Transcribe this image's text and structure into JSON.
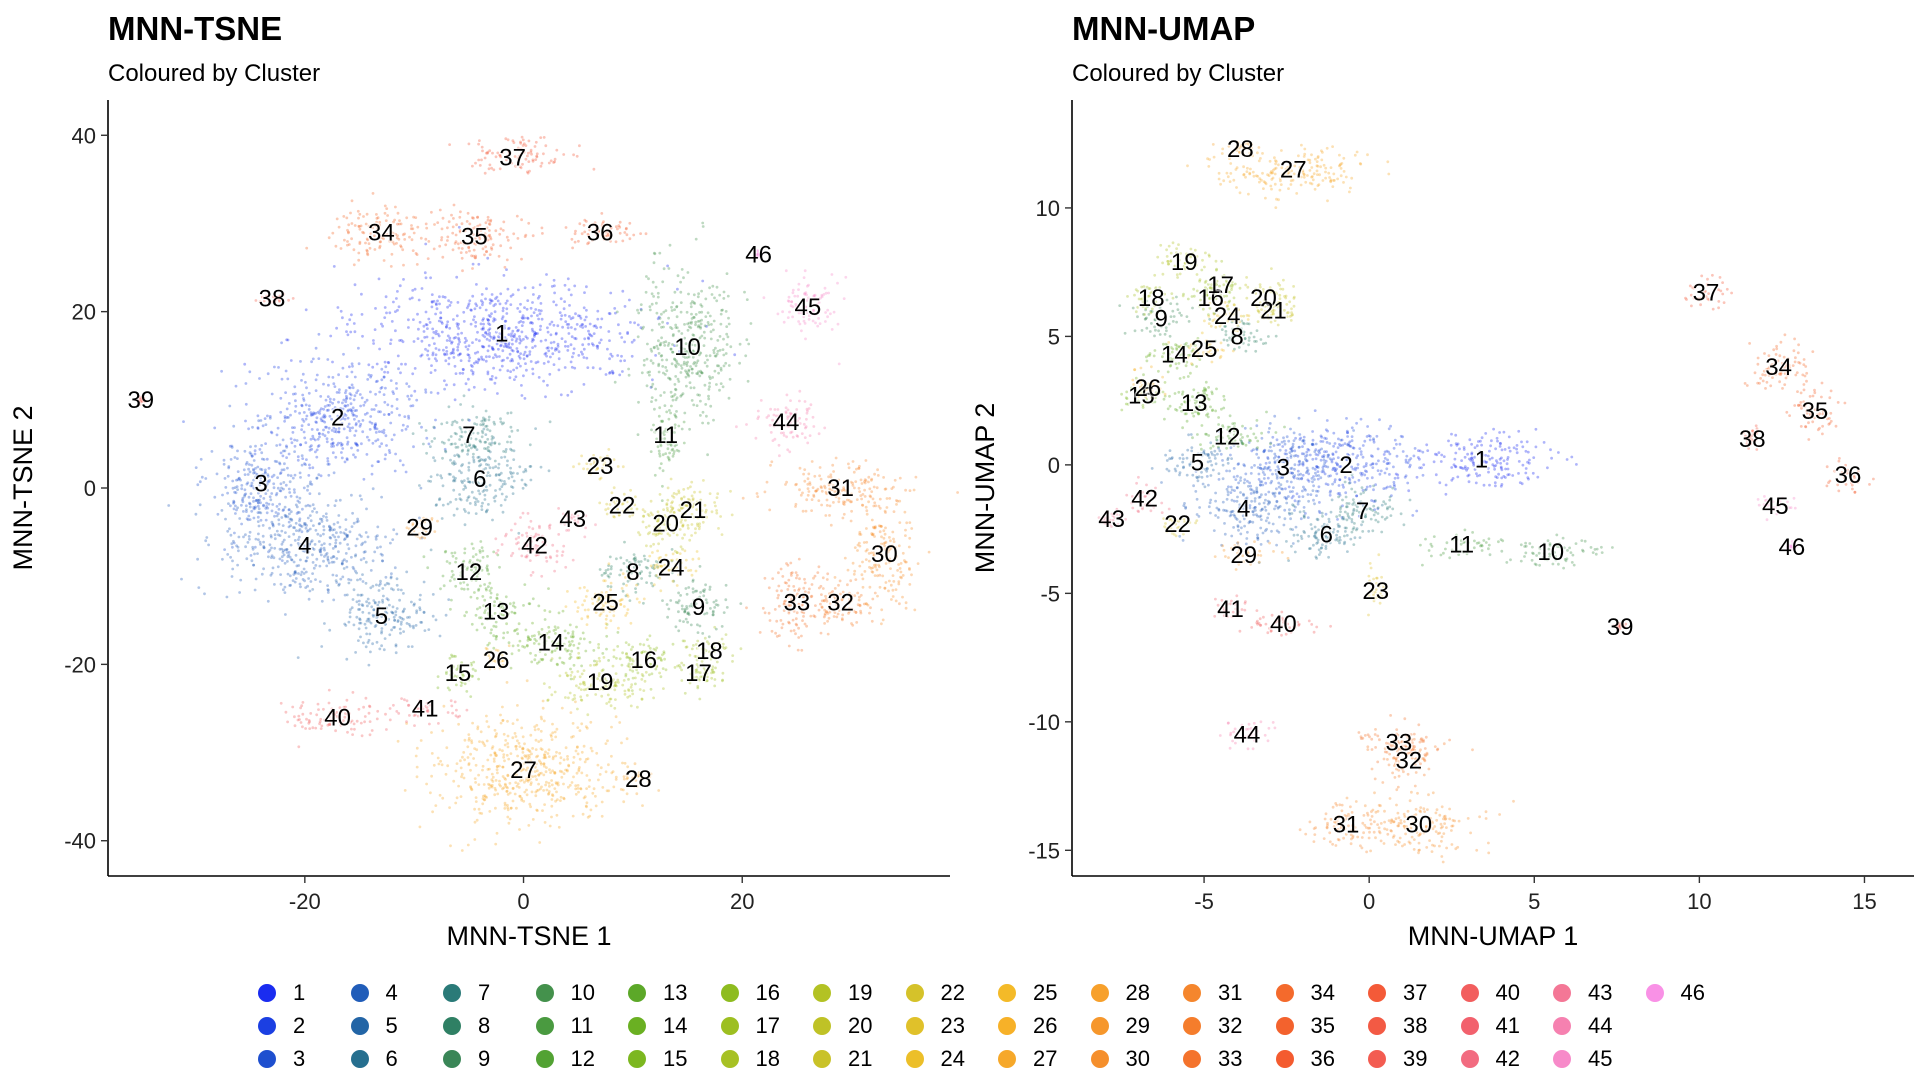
{
  "chart_data": [
    {
      "type": "scatter",
      "title": "MNN-TSNE",
      "subtitle": "Coloured by Cluster",
      "xlabel": "MNN-TSNE 1",
      "ylabel": "MNN-TSNE 2",
      "xlim": [
        -38,
        39
      ],
      "ylim": [
        -44,
        44
      ],
      "xticks": [
        -20,
        0,
        20
      ],
      "yticks": [
        -40,
        -20,
        0,
        20,
        40
      ],
      "grid": false,
      "legend_position": "bottom",
      "clusters": [
        {
          "label": "1",
          "x": -2,
          "y": 17.5,
          "sx": 9,
          "sy": 4
        },
        {
          "label": "2",
          "x": -17,
          "y": 8,
          "sx": 5,
          "sy": 4
        },
        {
          "label": "3",
          "x": -24,
          "y": 0.5,
          "sx": 3,
          "sy": 4
        },
        {
          "label": "4",
          "x": -20,
          "y": -6.5,
          "sx": 5,
          "sy": 4
        },
        {
          "label": "5",
          "x": -13,
          "y": -14.5,
          "sx": 3,
          "sy": 3
        },
        {
          "label": "6",
          "x": -4,
          "y": 1,
          "sx": 3,
          "sy": 3
        },
        {
          "label": "7",
          "x": -5,
          "y": 6,
          "sx": 3,
          "sy": 2
        },
        {
          "label": "8",
          "x": 10,
          "y": -9.5,
          "sx": 2,
          "sy": 2
        },
        {
          "label": "9",
          "x": 16,
          "y": -13.5,
          "sx": 2,
          "sy": 2
        },
        {
          "label": "10",
          "x": 15,
          "y": 16,
          "sx": 3,
          "sy": 6
        },
        {
          "label": "11",
          "x": 13,
          "y": 6,
          "sx": 1,
          "sy": 3
        },
        {
          "label": "12",
          "x": -5,
          "y": -9.5,
          "sx": 2,
          "sy": 2
        },
        {
          "label": "13",
          "x": -2.5,
          "y": -14,
          "sx": 2,
          "sy": 2
        },
        {
          "label": "14",
          "x": 2.5,
          "y": -17.5,
          "sx": 3,
          "sy": 2
        },
        {
          "label": "15",
          "x": -6,
          "y": -21,
          "sx": 1.5,
          "sy": 1.5
        },
        {
          "label": "16",
          "x": 11,
          "y": -19.5,
          "sx": 2,
          "sy": 2
        },
        {
          "label": "17",
          "x": 16,
          "y": -21,
          "sx": 1.5,
          "sy": 1.5
        },
        {
          "label": "18",
          "x": 17,
          "y": -18.5,
          "sx": 1.5,
          "sy": 1.5
        },
        {
          "label": "19",
          "x": 7,
          "y": -22,
          "sx": 3,
          "sy": 2
        },
        {
          "label": "20",
          "x": 13,
          "y": -4,
          "sx": 2,
          "sy": 2
        },
        {
          "label": "21",
          "x": 15.5,
          "y": -2.5,
          "sx": 2,
          "sy": 2
        },
        {
          "label": "22",
          "x": 9,
          "y": -2,
          "sx": 1.5,
          "sy": 1
        },
        {
          "label": "23",
          "x": 7,
          "y": 2.5,
          "sx": 1.5,
          "sy": 1
        },
        {
          "label": "24",
          "x": 13.5,
          "y": -9,
          "sx": 1.5,
          "sy": 1.5
        },
        {
          "label": "25",
          "x": 7.5,
          "y": -13,
          "sx": 2,
          "sy": 2
        },
        {
          "label": "26",
          "x": -2.5,
          "y": -19.5,
          "sx": 1,
          "sy": 1
        },
        {
          "label": "27",
          "x": 0,
          "y": -32,
          "sx": 6,
          "sy": 4
        },
        {
          "label": "28",
          "x": 10.5,
          "y": -33,
          "sx": 1,
          "sy": 1
        },
        {
          "label": "29",
          "x": -9.5,
          "y": -4.5,
          "sx": 1,
          "sy": 1
        },
        {
          "label": "30",
          "x": 33,
          "y": -7.5,
          "sx": 2,
          "sy": 4
        },
        {
          "label": "31",
          "x": 29,
          "y": 0,
          "sx": 4,
          "sy": 2
        },
        {
          "label": "32",
          "x": 29,
          "y": -13,
          "sx": 2,
          "sy": 2
        },
        {
          "label": "33",
          "x": 25,
          "y": -13,
          "sx": 2,
          "sy": 3
        },
        {
          "label": "34",
          "x": -13,
          "y": 29,
          "sx": 3,
          "sy": 2
        },
        {
          "label": "35",
          "x": -4.5,
          "y": 28.5,
          "sx": 3,
          "sy": 2
        },
        {
          "label": "36",
          "x": 7,
          "y": 29,
          "sx": 3,
          "sy": 1
        },
        {
          "label": "37",
          "x": -1,
          "y": 37.5,
          "sx": 3,
          "sy": 1.5
        },
        {
          "label": "38",
          "x": -23,
          "y": 21.5,
          "sx": 1,
          "sy": 0.5
        },
        {
          "label": "39",
          "x": -35,
          "y": 10,
          "sx": 0.3,
          "sy": 0.3
        },
        {
          "label": "40",
          "x": -17,
          "y": -26,
          "sx": 3,
          "sy": 1.5
        },
        {
          "label": "41",
          "x": -9,
          "y": -25,
          "sx": 2,
          "sy": 1
        },
        {
          "label": "42",
          "x": 1,
          "y": -6.5,
          "sx": 2,
          "sy": 2
        },
        {
          "label": "43",
          "x": 4.5,
          "y": -3.5,
          "sx": 1,
          "sy": 1
        },
        {
          "label": "44",
          "x": 24,
          "y": 7.5,
          "sx": 2,
          "sy": 2
        },
        {
          "label": "45",
          "x": 26,
          "y": 20.5,
          "sx": 2,
          "sy": 2
        },
        {
          "label": "46",
          "x": 21.5,
          "y": 26.5,
          "sx": 0.3,
          "sy": 0.3
        }
      ]
    },
    {
      "type": "scatter",
      "title": "MNN-UMAP",
      "subtitle": "Coloured by Cluster",
      "xlabel": "MNN-UMAP 1",
      "ylabel": "MNN-UMAP 2",
      "xlim": [
        -9,
        16.5
      ],
      "ylim": [
        -16,
        14.2
      ],
      "xticks": [
        -5,
        0,
        5,
        10,
        15
      ],
      "yticks": [
        -15,
        -10,
        -5,
        0,
        5,
        10
      ],
      "grid": false,
      "legend_position": "bottom",
      "clusters": [
        {
          "label": "1",
          "x": 3.4,
          "y": 0.2,
          "sx": 1.4,
          "sy": 0.7
        },
        {
          "label": "2",
          "x": -0.7,
          "y": 0,
          "sx": 1.4,
          "sy": 1.1
        },
        {
          "label": "3",
          "x": -2.6,
          "y": -0.1,
          "sx": 1.2,
          "sy": 1.1
        },
        {
          "label": "4",
          "x": -3.8,
          "y": -1.7,
          "sx": 1,
          "sy": 0.9
        },
        {
          "label": "5",
          "x": -5.2,
          "y": 0.1,
          "sx": 0.7,
          "sy": 0.6
        },
        {
          "label": "6",
          "x": -1.3,
          "y": -2.7,
          "sx": 0.8,
          "sy": 0.7
        },
        {
          "label": "7",
          "x": -0.2,
          "y": -1.8,
          "sx": 0.7,
          "sy": 0.7
        },
        {
          "label": "8",
          "x": -4,
          "y": 5,
          "sx": 0.6,
          "sy": 0.5
        },
        {
          "label": "9",
          "x": -6.3,
          "y": 5.7,
          "sx": 0.6,
          "sy": 0.5
        },
        {
          "label": "10",
          "x": 5.5,
          "y": -3.4,
          "sx": 1,
          "sy": 0.4
        },
        {
          "label": "11",
          "x": 2.8,
          "y": -3.1,
          "sx": 0.8,
          "sy": 0.3
        },
        {
          "label": "12",
          "x": -4.3,
          "y": 1.1,
          "sx": 0.7,
          "sy": 0.5
        },
        {
          "label": "13",
          "x": -5.3,
          "y": 2.4,
          "sx": 0.7,
          "sy": 0.6
        },
        {
          "label": "14",
          "x": -5.9,
          "y": 4.3,
          "sx": 0.6,
          "sy": 0.5
        },
        {
          "label": "15",
          "x": -6.9,
          "y": 2.7,
          "sx": 0.4,
          "sy": 0.4
        },
        {
          "label": "16",
          "x": -4.8,
          "y": 6.5,
          "sx": 0.5,
          "sy": 0.4
        },
        {
          "label": "17",
          "x": -4.5,
          "y": 7,
          "sx": 0.5,
          "sy": 0.4
        },
        {
          "label": "18",
          "x": -6.6,
          "y": 6.5,
          "sx": 0.5,
          "sy": 0.4
        },
        {
          "label": "19",
          "x": -5.6,
          "y": 7.9,
          "sx": 0.6,
          "sy": 0.5
        },
        {
          "label": "20",
          "x": -3.2,
          "y": 6.5,
          "sx": 0.5,
          "sy": 0.5
        },
        {
          "label": "21",
          "x": -2.9,
          "y": 6,
          "sx": 0.5,
          "sy": 0.5
        },
        {
          "label": "22",
          "x": -5.8,
          "y": -2.3,
          "sx": 0.3,
          "sy": 0.3
        },
        {
          "label": "23",
          "x": 0.2,
          "y": -4.9,
          "sx": 0.2,
          "sy": 0.6
        },
        {
          "label": "24",
          "x": -4.3,
          "y": 5.8,
          "sx": 0.5,
          "sy": 0.4
        },
        {
          "label": "25",
          "x": -5,
          "y": 4.5,
          "sx": 0.5,
          "sy": 0.4
        },
        {
          "label": "26",
          "x": -6.7,
          "y": 3,
          "sx": 0.4,
          "sy": 0.4
        },
        {
          "label": "27",
          "x": -2.3,
          "y": 11.5,
          "sx": 1.7,
          "sy": 0.6
        },
        {
          "label": "28",
          "x": -3.9,
          "y": 12.3,
          "sx": 0.4,
          "sy": 0.2
        },
        {
          "label": "29",
          "x": -3.8,
          "y": -3.5,
          "sx": 0.6,
          "sy": 0.3
        },
        {
          "label": "30",
          "x": 1.5,
          "y": -14,
          "sx": 1.2,
          "sy": 0.7
        },
        {
          "label": "31",
          "x": -0.7,
          "y": -14,
          "sx": 0.8,
          "sy": 0.6
        },
        {
          "label": "32",
          "x": 1.2,
          "y": -11.5,
          "sx": 0.6,
          "sy": 0.6
        },
        {
          "label": "33",
          "x": 0.9,
          "y": -10.8,
          "sx": 0.8,
          "sy": 0.5
        },
        {
          "label": "34",
          "x": 12.4,
          "y": 3.8,
          "sx": 0.6,
          "sy": 0.7
        },
        {
          "label": "35",
          "x": 13.5,
          "y": 2.1,
          "sx": 0.5,
          "sy": 0.6
        },
        {
          "label": "36",
          "x": 14.5,
          "y": -0.4,
          "sx": 0.4,
          "sy": 0.4
        },
        {
          "label": "37",
          "x": 10.2,
          "y": 6.7,
          "sx": 0.5,
          "sy": 0.4
        },
        {
          "label": "38",
          "x": 11.6,
          "y": 1,
          "sx": 0.2,
          "sy": 0.3
        },
        {
          "label": "39",
          "x": 7.6,
          "y": -6.3,
          "sx": 0.1,
          "sy": 0.1
        },
        {
          "label": "40",
          "x": -2.6,
          "y": -6.2,
          "sx": 0.8,
          "sy": 0.3
        },
        {
          "label": "41",
          "x": -4.2,
          "y": -5.6,
          "sx": 0.4,
          "sy": 0.3
        },
        {
          "label": "42",
          "x": -6.8,
          "y": -1.3,
          "sx": 0.4,
          "sy": 0.4
        },
        {
          "label": "43",
          "x": -7.8,
          "y": -2.1,
          "sx": 0.3,
          "sy": 0.2
        },
        {
          "label": "44",
          "x": -3.7,
          "y": -10.5,
          "sx": 0.5,
          "sy": 0.4
        },
        {
          "label": "45",
          "x": 12.3,
          "y": -1.6,
          "sx": 0.4,
          "sy": 0.3
        },
        {
          "label": "46",
          "x": 12.8,
          "y": -3.2,
          "sx": 0.1,
          "sy": 0.1
        }
      ]
    }
  ],
  "legend": {
    "items": [
      {
        "label": "1",
        "color": "#1a2cf0"
      },
      {
        "label": "2",
        "color": "#1b3fe2"
      },
      {
        "label": "3",
        "color": "#1e4fcf"
      },
      {
        "label": "4",
        "color": "#215db9"
      },
      {
        "label": "5",
        "color": "#2365a6"
      },
      {
        "label": "6",
        "color": "#266f8f"
      },
      {
        "label": "7",
        "color": "#2a7a78"
      },
      {
        "label": "8",
        "color": "#2f8064"
      },
      {
        "label": "9",
        "color": "#3a8657"
      },
      {
        "label": "10",
        "color": "#44914c"
      },
      {
        "label": "11",
        "color": "#4a9a40"
      },
      {
        "label": "12",
        "color": "#52a233"
      },
      {
        "label": "13",
        "color": "#5ca828"
      },
      {
        "label": "14",
        "color": "#6ab022"
      },
      {
        "label": "15",
        "color": "#7cb720"
      },
      {
        "label": "16",
        "color": "#8ebc20"
      },
      {
        "label": "17",
        "color": "#9dbf21"
      },
      {
        "label": "18",
        "color": "#a7c124"
      },
      {
        "label": "19",
        "color": "#b3c224"
      },
      {
        "label": "20",
        "color": "#bfc226"
      },
      {
        "label": "21",
        "color": "#c9c228"
      },
      {
        "label": "22",
        "color": "#d5c22a"
      },
      {
        "label": "23",
        "color": "#e0c12a"
      },
      {
        "label": "24",
        "color": "#ecbf29"
      },
      {
        "label": "25",
        "color": "#f4ba28"
      },
      {
        "label": "26",
        "color": "#f7b128"
      },
      {
        "label": "27",
        "color": "#f6a82a"
      },
      {
        "label": "28",
        "color": "#f7a02b"
      },
      {
        "label": "29",
        "color": "#f6972c"
      },
      {
        "label": "30",
        "color": "#f58f2c"
      },
      {
        "label": "31",
        "color": "#f5862d"
      },
      {
        "label": "32",
        "color": "#f57d2c"
      },
      {
        "label": "33",
        "color": "#f4732c"
      },
      {
        "label": "34",
        "color": "#f46a2c"
      },
      {
        "label": "35",
        "color": "#f3622d"
      },
      {
        "label": "36",
        "color": "#f45b2f"
      },
      {
        "label": "37",
        "color": "#f45a38"
      },
      {
        "label": "38",
        "color": "#f35a44"
      },
      {
        "label": "39",
        "color": "#f35c51"
      },
      {
        "label": "40",
        "color": "#f25e5e"
      },
      {
        "label": "41",
        "color": "#f2616d"
      },
      {
        "label": "42",
        "color": "#f26b80"
      },
      {
        "label": "43",
        "color": "#f47796"
      },
      {
        "label": "44",
        "color": "#f681b0"
      },
      {
        "label": "45",
        "color": "#f78ac9"
      },
      {
        "label": "46",
        "color": "#f991e6"
      }
    ]
  }
}
